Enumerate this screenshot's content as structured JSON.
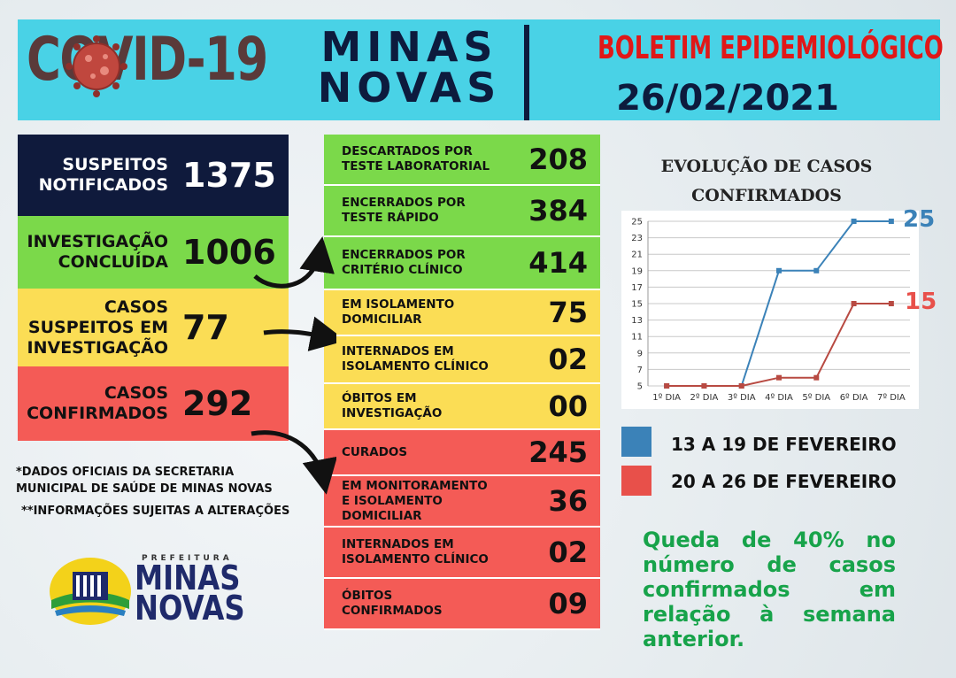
{
  "header": {
    "title_covid": "COVID-19",
    "title_city": "MINAS NOVAS",
    "bulletin": "BOLETIM EPIDEMIOLÓGICO",
    "date": "26/02/2021"
  },
  "left_stats": [
    {
      "label": "SUSPEITOS NOTIFICADOS",
      "value": "1375",
      "color": "#0f1a3c",
      "text_color": "#ffffff"
    },
    {
      "label": "INVESTIGAÇÃO CONCLUÍDA",
      "value": "1006",
      "color": "#7bd94a",
      "text_color": "#111111"
    },
    {
      "label": "CASOS SUSPEITOS EM INVESTIGAÇÃO",
      "value": "77",
      "color": "#fbdd55",
      "text_color": "#111111"
    },
    {
      "label": "CASOS CONFIRMADOS",
      "value": "292",
      "color": "#f45b56",
      "text_color": "#111111"
    }
  ],
  "right_stats": [
    {
      "label": "DESCARTADOS POR TESTE LABORATORIAL",
      "value": "208",
      "group": "green"
    },
    {
      "label": "ENCERRADOS  POR TESTE RÁPIDO",
      "value": "384",
      "group": "green"
    },
    {
      "label": "ENCERRADOS POR CRITÉRIO CLÍNICO",
      "value": "414",
      "group": "green"
    },
    {
      "label": "EM ISOLAMENTO DOMICILIAR",
      "value": "75",
      "group": "yellow"
    },
    {
      "label": "INTERNADOS EM ISOLAMENTO CLÍNICO",
      "value": "02",
      "group": "yellow"
    },
    {
      "label": "ÓBITOS EM INVESTIGAÇÃO",
      "value": "00",
      "group": "yellow"
    },
    {
      "label": "CURADOS",
      "value": "245",
      "group": "red"
    },
    {
      "label": "EM MONITORAMENTO E ISOLAMENTO DOMICILIAR",
      "value": "36",
      "group": "red"
    },
    {
      "label": "INTERNADOS EM ISOLAMENTO CLÍNICO",
      "value": "02",
      "group": "red"
    },
    {
      "label": "ÓBITOS  CONFIRMADOS",
      "value": "09",
      "group": "red"
    }
  ],
  "notes": {
    "line1": "*DADOS OFICIAIS DA SECRETARIA MUNICIPAL DE SAÚDE DE MINAS NOVAS",
    "line2": "**INFORMAÇÕES SUJEITAS A ALTERAÇÕES"
  },
  "logo": {
    "small": "PREFEITURA",
    "big_line1": "MINAS",
    "big_line2": "NOVAS"
  },
  "chart_data": {
    "type": "line",
    "title": "EVOLUÇÃO DE CASOS CONFIRMADOS",
    "categories": [
      "1º DIA",
      "2º DIA",
      "3º DIA",
      "4º DIA",
      "5º DIA",
      "6º DIA",
      "7º DIA"
    ],
    "series": [
      {
        "name": "13 A 19 DE  FEVEREIRO",
        "color": "#3b82b8",
        "values": [
          5,
          5,
          5,
          19,
          19,
          25,
          25
        ],
        "end_label": "25"
      },
      {
        "name": "20 A 26 DE FEVEREIRO",
        "color": "#b84a42",
        "values": [
          5,
          5,
          5,
          6,
          6,
          15,
          15
        ],
        "end_label": "15"
      }
    ],
    "yticks": [
      5,
      7,
      9,
      11,
      13,
      15,
      17,
      19,
      21,
      23,
      25
    ],
    "ylim": [
      5,
      25
    ],
    "grid": true,
    "legend_position": "bottom"
  },
  "legend": [
    {
      "label": "13 A 19 DE  FEVEREIRO",
      "color": "#3b82b8"
    },
    {
      "label": "20 A 26 DE FEVEREIRO",
      "color": "#e8504a"
    }
  ],
  "summary": "Queda de 40% no número de casos confirmados em relação à semana anterior."
}
